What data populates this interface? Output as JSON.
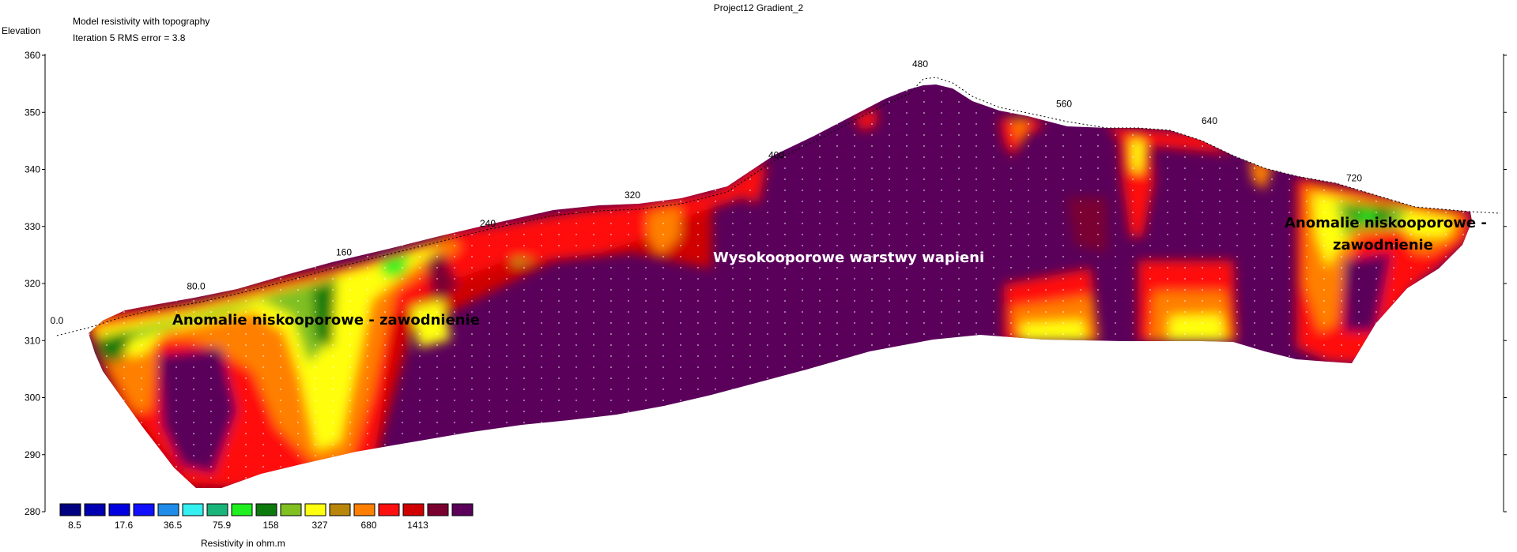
{
  "chart_data": {
    "type": "heatmap",
    "title": "Project12 Gradient_2",
    "subtitle_lines": [
      "Model resistivity with topography",
      "Iteration 5 RMS error = 3.8"
    ],
    "ylabel": "Elevation",
    "yticks": [
      360,
      350,
      340,
      330,
      320,
      310,
      300,
      290,
      280
    ],
    "ylim": [
      280,
      360
    ],
    "xticks": [
      "0.0",
      "80.0",
      "160",
      "240",
      "320",
      "400",
      "480",
      "560",
      "640",
      "720"
    ],
    "xtick_values": [
      0,
      80,
      160,
      240,
      320,
      400,
      480,
      560,
      640,
      720
    ],
    "xlim": [
      0,
      760
    ],
    "surface_profile": {
      "x": [
        0,
        40,
        80,
        120,
        160,
        200,
        240,
        280,
        320,
        360,
        400,
        440,
        480,
        520,
        560,
        600,
        640,
        680,
        720,
        760
      ],
      "elevation": [
        311,
        315,
        317,
        320,
        323,
        325,
        328,
        331,
        333,
        335,
        340,
        347,
        356,
        350,
        349,
        347,
        346,
        340,
        336,
        332
      ]
    },
    "legend_title": "Resistivity in ohm.m",
    "legend_labels": [
      "8.5",
      "17.6",
      "36.5",
      "75.9",
      "158",
      "327",
      "680",
      "1413"
    ],
    "legend_colors": [
      "#000080",
      "#0000b0",
      "#0000e0",
      "#1010ff",
      "#1e8ce8",
      "#34f0f0",
      "#18b47a",
      "#20f020",
      "#0c7a0c",
      "#80c020",
      "#ffff10",
      "#b8860b",
      "#ff8000",
      "#ff1010",
      "#d00000",
      "#7a0030",
      "#5a005a"
    ],
    "annotations": [
      "Anomalie niskooporowe - zawodnienie",
      "Wysokooporowe warstwy wapieni",
      "Anomalie niskooporowe -",
      "zawodnienie"
    ]
  }
}
